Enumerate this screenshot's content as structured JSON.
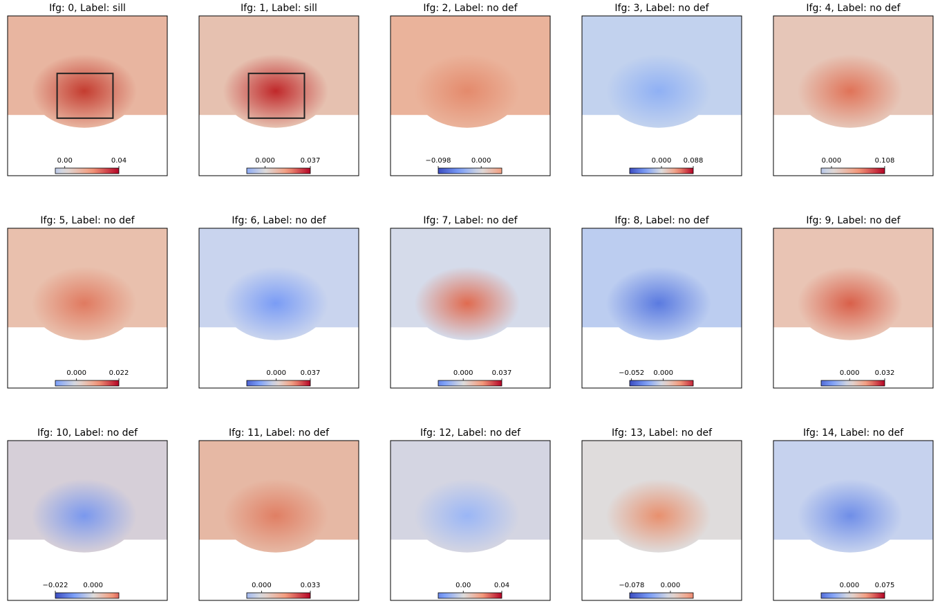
{
  "chart_data": [
    {
      "type": "image",
      "cmap": "coolwarm",
      "title": "Ifg: 0, Label: sill",
      "clim": [
        -0.007,
        0.04
      ],
      "cticks": [
        {
          "value": 0,
          "label": "0.00"
        },
        0.04
      ]
    },
    {
      "type": "image",
      "cmap": "coolwarm",
      "title": "Ifg: 1, Label: sill",
      "clim": [
        -0.015,
        0.037
      ],
      "cticks": [
        {
          "value": 0,
          "label": "0.000"
        },
        0.037
      ]
    },
    {
      "type": "image",
      "cmap": "coolwarm",
      "title": "Ifg: 2, Label: no def",
      "clim": [
        -0.098,
        0.047
      ],
      "cticks": [
        {
          "value": -0.098,
          "label": "−0.098"
        },
        {
          "value": 0,
          "label": "0.000"
        }
      ]
    },
    {
      "type": "image",
      "cmap": "coolwarm",
      "title": "Ifg: 3, Label: no def",
      "clim": [
        -0.088,
        0.088
      ],
      "cticks": [
        {
          "value": 0,
          "label": "0.000"
        },
        0.088
      ]
    },
    {
      "type": "image",
      "cmap": "coolwarm",
      "title": "Ifg: 4, Label: no def",
      "clim": [
        -0.021,
        0.108
      ],
      "cticks": [
        {
          "value": 0,
          "label": "0.000"
        },
        0.108
      ]
    },
    {
      "type": "image",
      "cmap": "coolwarm",
      "title": "Ifg: 5, Label: no def",
      "clim": [
        -0.011,
        0.022
      ],
      "cticks": [
        {
          "value": 0,
          "label": "0.000"
        },
        0.022
      ]
    },
    {
      "type": "image",
      "cmap": "coolwarm",
      "title": "Ifg: 6, Label: no def",
      "clim": [
        -0.032,
        0.037
      ],
      "cticks": [
        {
          "value": 0,
          "label": "0.000"
        },
        0.037
      ]
    },
    {
      "type": "image",
      "cmap": "coolwarm",
      "title": "Ifg: 7, Label: no def",
      "clim": [
        -0.024,
        0.037
      ],
      "cticks": [
        {
          "value": 0,
          "label": "0.000"
        },
        0.037
      ]
    },
    {
      "type": "image",
      "cmap": "coolwarm",
      "title": "Ifg: 8, Label: no def",
      "clim": [
        -0.055,
        0.049
      ],
      "cticks": [
        {
          "value": -0.052,
          "label": "−0.052"
        },
        {
          "value": 0,
          "label": "0.000"
        }
      ]
    },
    {
      "type": "image",
      "cmap": "coolwarm",
      "title": "Ifg: 9, Label: no def",
      "clim": [
        -0.026,
        0.032
      ],
      "cticks": [
        {
          "value": 0,
          "label": "0.000"
        },
        0.032
      ]
    },
    {
      "type": "image",
      "cmap": "coolwarm",
      "title": "Ifg: 10, Label: no def",
      "clim": [
        -0.022,
        0.015
      ],
      "cticks": [
        {
          "value": -0.022,
          "label": "−0.022"
        },
        {
          "value": 0,
          "label": "0.000"
        }
      ]
    },
    {
      "type": "image",
      "cmap": "coolwarm",
      "title": "Ifg: 11, Label: no def",
      "clim": [
        -0.01,
        0.033
      ],
      "cticks": [
        {
          "value": 0,
          "label": "0.000"
        },
        0.033
      ]
    },
    {
      "type": "image",
      "cmap": "coolwarm",
      "title": "Ifg: 12, Label: no def",
      "clim": [
        -0.026,
        0.04
      ],
      "cticks": [
        {
          "value": 0,
          "label": "0.00"
        },
        0.04
      ]
    },
    {
      "type": "image",
      "cmap": "coolwarm",
      "title": "Ifg: 13, Label: no def",
      "clim": [
        -0.082,
        0.046
      ],
      "cticks": [
        {
          "value": -0.078,
          "label": "−0.078"
        },
        {
          "value": 0,
          "label": "0.000"
        }
      ]
    },
    {
      "type": "image",
      "cmap": "coolwarm",
      "title": "Ifg: 14, Label: no def",
      "clim": [
        -0.06,
        0.075
      ],
      "cticks": [
        {
          "value": 0,
          "label": "0.000"
        },
        0.075
      ]
    }
  ]
}
